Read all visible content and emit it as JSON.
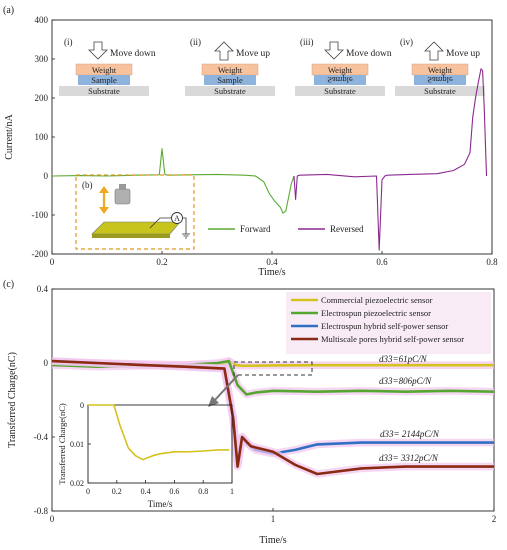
{
  "chart_data": [
    {
      "panel_label": "(a)",
      "type": "line",
      "xlabel": "Time/s",
      "ylabel": "Current/nA",
      "xlim": [
        0,
        0.8
      ],
      "ylim": [
        -200,
        400
      ],
      "x_ticks": [
        "0",
        "0.2",
        "0.4",
        "0.6",
        "0.8"
      ],
      "y_ticks": [
        "-200",
        "-100",
        "0",
        "100",
        "200",
        "300",
        "400"
      ],
      "x_tick_values": [
        0,
        0.2,
        0.4,
        0.6,
        0.8
      ],
      "y_tick_values": [
        -200,
        -100,
        0,
        100,
        200,
        300,
        400
      ],
      "legend_placement": "bottom-center",
      "series": [
        {
          "name": "Forward",
          "color": "#5aaa32",
          "x": [
            0.0,
            0.05,
            0.1,
            0.15,
            0.195,
            0.2,
            0.205,
            0.21,
            0.25,
            0.3,
            0.35,
            0.37,
            0.385,
            0.395,
            0.405,
            0.415,
            0.42,
            0.425,
            0.435,
            0.44
          ],
          "y": [
            0,
            1,
            0,
            2,
            3,
            70,
            5,
            2,
            3,
            4,
            2,
            0,
            -15,
            -45,
            -65,
            -80,
            -95,
            -90,
            -20,
            0
          ]
        },
        {
          "name": "Reversed",
          "color": "#8a2a8f",
          "x": [
            0.44,
            0.443,
            0.446,
            0.45,
            0.5,
            0.55,
            0.59,
            0.595,
            0.6,
            0.605,
            0.61,
            0.65,
            0.7,
            0.73,
            0.75,
            0.76,
            0.765,
            0.77,
            0.775,
            0.78,
            0.783,
            0.786,
            0.79
          ],
          "y": [
            0,
            -60,
            0,
            2,
            4,
            -2,
            0,
            -190,
            -10,
            0,
            2,
            4,
            6,
            14,
            30,
            60,
            150,
            200,
            240,
            275,
            270,
            170,
            0
          ]
        }
      ],
      "annotations": {
        "steps": [
          {
            "label": "(i)",
            "action": "Move down",
            "arrow": "down",
            "weight": "Weight",
            "sample": "Sample",
            "substrate": "Substrate",
            "flipped": false
          },
          {
            "label": "(ii)",
            "action": "Move up",
            "arrow": "up",
            "weight": "Weight",
            "sample": "Sample",
            "substrate": "Substrate",
            "flipped": false
          },
          {
            "label": "(iii)",
            "action": "Move down",
            "arrow": "down",
            "weight": "Weight",
            "sample": "Sample",
            "substrate": "Substrate",
            "flipped": true
          },
          {
            "label": "(iv)",
            "action": "Move up",
            "arrow": "up",
            "weight": "Weight",
            "sample": "Sample",
            "substrate": "Substrate",
            "flipped": true
          }
        ],
        "inset_label": "(b)",
        "ammeter_label": "A"
      }
    },
    {
      "panel_label": "(c)",
      "type": "line",
      "xlabel": "Time/s",
      "ylabel": "Transferred Charge(nC)",
      "xlim": [
        0,
        2
      ],
      "ylim": [
        -0.8,
        0.4
      ],
      "x_ticks": [
        "0",
        "1",
        "2"
      ],
      "y_ticks": [
        "-0.8",
        "-0.4",
        "0",
        "0.4"
      ],
      "x_tick_values": [
        0,
        1,
        2
      ],
      "y_tick_values": [
        -0.8,
        -0.4,
        0,
        0.4
      ],
      "legend_placement": "top-right",
      "series": [
        {
          "name": "Commercial piezoelectric sensor",
          "color": "#d4c21e",
          "annotation": "d33=61pC/N",
          "x": [
            0,
            0.2,
            0.4,
            0.6,
            0.78,
            0.8,
            0.83,
            0.86,
            1.0,
            1.2,
            1.4,
            1.6,
            1.8,
            2.0
          ],
          "y": [
            0.0,
            0.0,
            -0.005,
            -0.01,
            -0.005,
            0.01,
            -0.01,
            -0.015,
            -0.013,
            -0.012,
            -0.012,
            -0.012,
            -0.012,
            -0.012
          ]
        },
        {
          "name": "Electrospun piezoelectric sensor",
          "color": "#55a630",
          "annotation": "d33=806pC/N",
          "x": [
            0,
            0.2,
            0.4,
            0.6,
            0.75,
            0.8,
            0.84,
            0.88,
            0.92,
            1.0,
            1.2,
            1.4,
            1.6,
            1.8,
            2.0
          ],
          "y": [
            -0.01,
            -0.02,
            -0.015,
            -0.01,
            0.0,
            0.01,
            -0.12,
            -0.17,
            -0.16,
            -0.15,
            -0.155,
            -0.15,
            -0.155,
            -0.15,
            -0.155
          ]
        },
        {
          "name": "Electrospun hybrid self-power sensor",
          "color": "#2f6fc4",
          "annotation": "d33= 2144pC/N",
          "x": [
            0,
            0.2,
            0.4,
            0.6,
            0.78,
            0.82,
            0.84,
            0.86,
            0.88,
            0.92,
            1.0,
            1.1,
            1.2,
            1.4,
            1.6,
            1.8,
            2.0
          ],
          "y": [
            0.01,
            0.0,
            -0.01,
            -0.02,
            -0.03,
            -0.3,
            -0.55,
            -0.4,
            -0.43,
            -0.47,
            -0.49,
            -0.47,
            -0.44,
            -0.43,
            -0.43,
            -0.43,
            -0.43
          ]
        },
        {
          "name": "Multiscale pores hybrid self-power sensor",
          "color": "#8b2a12",
          "annotation": "d33= 3312pC/N",
          "x": [
            0,
            0.2,
            0.4,
            0.6,
            0.78,
            0.82,
            0.84,
            0.86,
            0.9,
            1.0,
            1.1,
            1.2,
            1.4,
            1.6,
            1.8,
            2.0
          ],
          "y": [
            0.01,
            0.0,
            -0.01,
            -0.02,
            -0.03,
            -0.3,
            -0.56,
            -0.4,
            -0.45,
            -0.48,
            -0.55,
            -0.6,
            -0.57,
            -0.56,
            -0.56,
            -0.56
          ]
        }
      ],
      "inset": {
        "xlabel": "Time/s",
        "ylabel": "Transferred Charge(nC)",
        "xlim": [
          0,
          1
        ],
        "ylim": [
          -0.02,
          0.0
        ],
        "x_ticks": [
          "0",
          "0.2",
          "0.4",
          "0.6",
          "0.8",
          "1"
        ],
        "y_ticks": [
          "0",
          "0.01",
          "0.02"
        ],
        "x_tick_values": [
          0,
          0.2,
          0.4,
          0.6,
          0.8,
          1
        ],
        "y_tick_values": [
          0,
          -0.01,
          -0.02
        ],
        "series": {
          "name": "Commercial piezoelectric sensor",
          "color": "#d4c21e",
          "x": [
            0,
            0.1,
            0.18,
            0.22,
            0.28,
            0.33,
            0.38,
            0.45,
            0.5,
            0.6,
            0.7,
            0.8,
            0.9,
            0.98
          ],
          "y": [
            0.0,
            0.0,
            0.0,
            -0.005,
            -0.011,
            -0.013,
            -0.014,
            -0.013,
            -0.0125,
            -0.012,
            -0.012,
            -0.0118,
            -0.0115,
            -0.0115
          ]
        }
      }
    }
  ]
}
